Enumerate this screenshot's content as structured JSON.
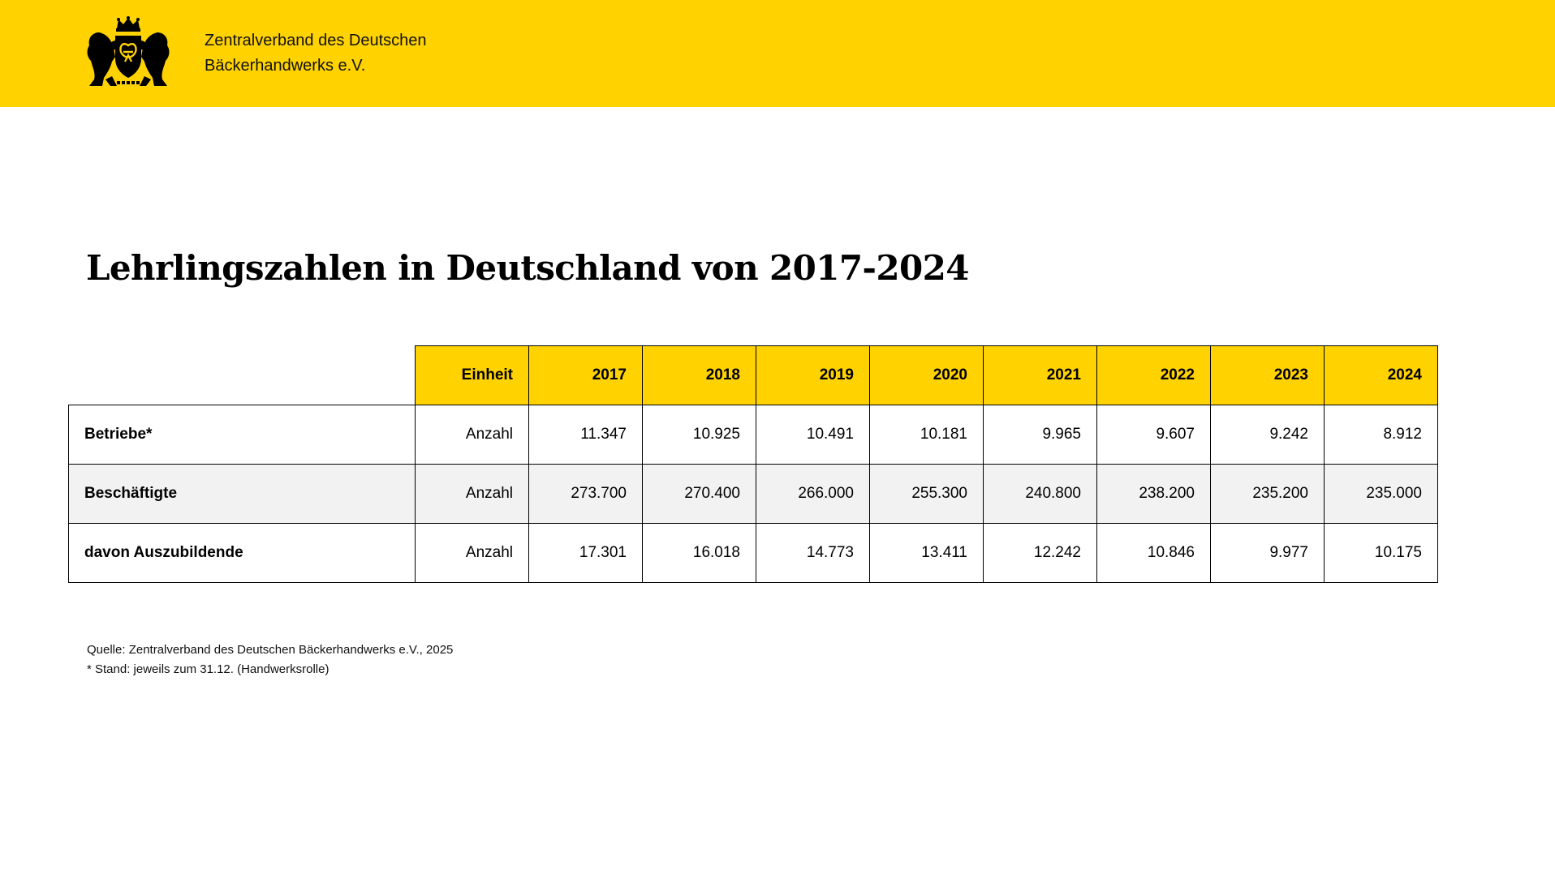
{
  "header": {
    "org_line1": "Zentralverband des Deutschen",
    "org_line2": "Bäckerhandwerks e.V.",
    "logo_icon": "coat-of-arms-lions-crown-pretzel"
  },
  "title": "Lehrlingszahlen in Deutschland von 2017-2024",
  "table": {
    "columns": [
      "",
      "Einheit",
      "2017",
      "2018",
      "2019",
      "2020",
      "2021",
      "2022",
      "2023",
      "2024"
    ],
    "rows": [
      {
        "label": "Betriebe*",
        "unit": "Anzahl",
        "values": [
          "11.347",
          "10.925",
          "10.491",
          "10.181",
          "9.965",
          "9.607",
          "9.242",
          "8.912"
        ]
      },
      {
        "label": "Beschäftigte",
        "unit": "Anzahl",
        "values": [
          "273.700",
          "270.400",
          "266.000",
          "255.300",
          "240.800",
          "238.200",
          "235.200",
          "235.000"
        ]
      },
      {
        "label": "davon Auszubildende",
        "unit": "Anzahl",
        "values": [
          "17.301",
          "16.018",
          "14.773",
          "13.411",
          "12.242",
          "10.846",
          "9.977",
          "10.175"
        ]
      }
    ]
  },
  "notes": {
    "source": "Quelle: Zentralverband des Deutschen Bäckerhandwerks e.V., 2025",
    "footnote": "* Stand: jeweils zum 31.12. (Handwerksrolle)"
  },
  "colors": {
    "brand_yellow": "#FFD200",
    "row_shade": "#F2F2F2",
    "text": "#000000"
  }
}
